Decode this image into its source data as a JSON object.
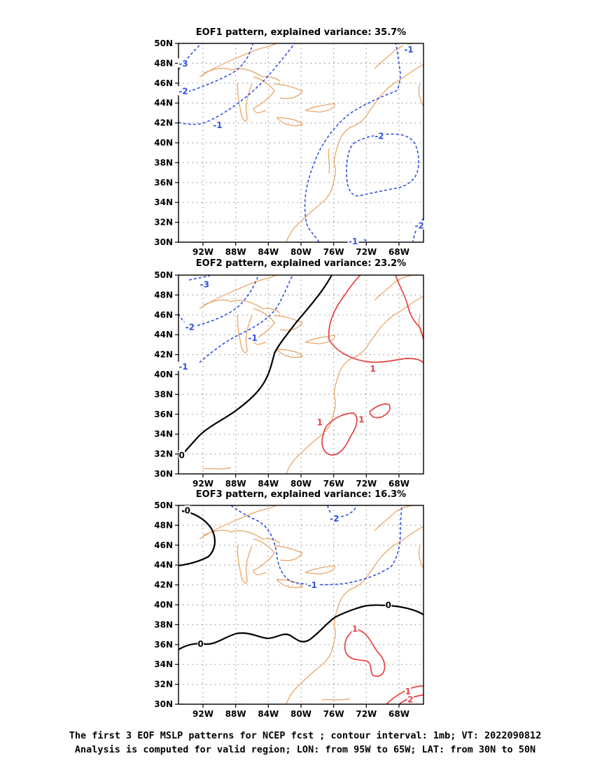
{
  "figure": {
    "panels": [
      {
        "id": "eof1",
        "title": "EOF1 pattern, explained variance: 35.7%",
        "contour_labels": [
          {
            "text": "-3",
            "lon": -94.4,
            "lat": 48.0,
            "sign": "neg"
          },
          {
            "text": "-2",
            "lon": -94.4,
            "lat": 45.2,
            "sign": "neg"
          },
          {
            "text": "-1",
            "lon": -90.2,
            "lat": 41.8,
            "sign": "neg"
          },
          {
            "text": "-1",
            "lon": -66.8,
            "lat": 49.4,
            "sign": "neg"
          },
          {
            "text": "-2",
            "lon": -70.4,
            "lat": 40.7,
            "sign": "neg"
          },
          {
            "text": "-1",
            "lon": -73.6,
            "lat": 30.1,
            "sign": "neg"
          },
          {
            "text": "-2",
            "lon": -65.5,
            "lat": 31.7,
            "sign": "neg"
          }
        ]
      },
      {
        "id": "eof2",
        "title": "EOF2 pattern, explained variance: 23.2%",
        "contour_labels": [
          {
            "text": "-3",
            "lon": -91.8,
            "lat": 49.1,
            "sign": "neg"
          },
          {
            "text": "-2",
            "lon": -93.6,
            "lat": 44.8,
            "sign": "neg"
          },
          {
            "text": "-1",
            "lon": -94.4,
            "lat": 40.8,
            "sign": "neg"
          },
          {
            "text": "-1",
            "lon": -85.9,
            "lat": 43.7,
            "sign": "neg"
          },
          {
            "text": "0",
            "lon": -94.6,
            "lat": 31.9,
            "sign": "zero"
          },
          {
            "text": "1",
            "lon": -77.7,
            "lat": 35.2,
            "sign": "pos"
          },
          {
            "text": "1",
            "lon": -72.6,
            "lat": 35.5,
            "sign": "pos"
          },
          {
            "text": "1",
            "lon": -71.2,
            "lat": 40.6,
            "sign": "pos"
          }
        ]
      },
      {
        "id": "eof3",
        "title": "EOF3 pattern, explained variance: 16.3%",
        "contour_labels": [
          {
            "text": "0",
            "lon": -93.9,
            "lat": 49.5,
            "sign": "zero"
          },
          {
            "text": "-2",
            "lon": -75.9,
            "lat": 48.7,
            "sign": "neg"
          },
          {
            "text": "-1",
            "lon": -78.6,
            "lat": 42.0,
            "sign": "neg"
          },
          {
            "text": "0",
            "lon": -92.3,
            "lat": 36.1,
            "sign": "zero"
          },
          {
            "text": "0",
            "lon": -69.3,
            "lat": 40.0,
            "sign": "zero"
          },
          {
            "text": "1",
            "lon": -73.4,
            "lat": 37.6,
            "sign": "pos"
          },
          {
            "text": "1",
            "lon": -66.9,
            "lat": 31.3,
            "sign": "pos"
          },
          {
            "text": "2",
            "lon": -66.6,
            "lat": 30.5,
            "sign": "pos"
          }
        ]
      }
    ],
    "lon_ticks": [
      "92W",
      "88W",
      "84W",
      "80W",
      "76W",
      "72W",
      "68W"
    ],
    "lat_ticks": [
      "50N",
      "48N",
      "46N",
      "44N",
      "42N",
      "40N",
      "38N",
      "36N",
      "34N",
      "32N",
      "30N"
    ],
    "caption_line1": "The first 3 EOF MSLP patterns for NCEP fcst ; contour interval: 1mb; VT: 2022090812",
    "caption_line2": "Analysis is computed for valid region; LON: from 95W to 65W; LAT: from 30N to 50N",
    "colors": {
      "negative_contour": "#3050e8",
      "positive_contour": "#e84040",
      "zero_contour": "#000000",
      "coastline": "#e8a060",
      "grid": "#999999"
    }
  }
}
